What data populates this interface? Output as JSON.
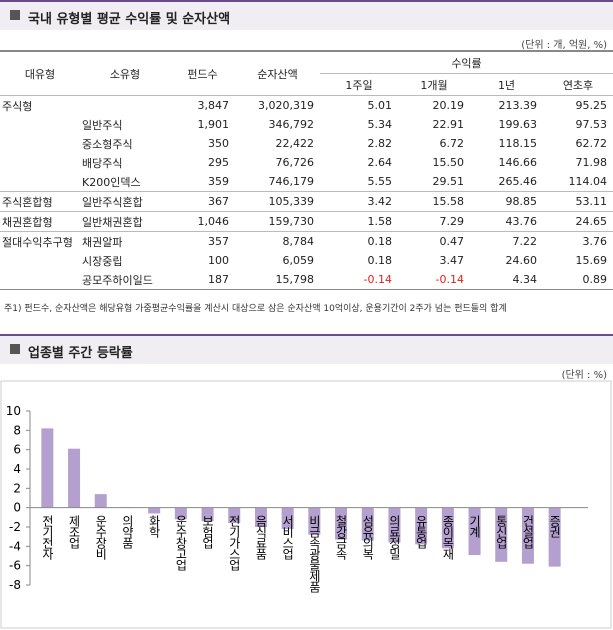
{
  "header": {
    "title": "국내 유형별 평균 수익률 및 순자산액",
    "unit": "(단위 : 개, 억원, %)"
  },
  "table": {
    "columns": [
      "대유형",
      "소유형",
      "펀드수",
      "순자산액"
    ],
    "group_header": "수익률",
    "sub_columns": [
      "1주일",
      "1개월",
      "1년",
      "연초후"
    ],
    "rows": [
      [
        "주식형",
        null,
        "3,847",
        "3,020,319",
        "5.01",
        "20.19",
        "213.39",
        "95.25"
      ],
      [
        null,
        "일반주식",
        "1,901",
        "346,792",
        "5.34",
        "22.91",
        "199.63",
        "97.53"
      ],
      [
        null,
        "중소형주식",
        "350",
        "22,422",
        "2.82",
        "6.72",
        "118.15",
        "62.72"
      ],
      [
        null,
        "배당주식",
        "295",
        "76,726",
        "2.64",
        "15.50",
        "146.66",
        "71.98"
      ],
      [
        null,
        "K200인덱스",
        "359",
        "746,179",
        "5.55",
        "29.51",
        "265.46",
        "114.04"
      ],
      [
        "주식혼합형",
        "일반주식혼합",
        "367",
        "105,339",
        "3.42",
        "15.58",
        "98.85",
        "53.11"
      ],
      [
        "채권혼합형",
        "일반채권혼합",
        "1,046",
        "159,730",
        "1.58",
        "7.29",
        "43.76",
        "24.65"
      ],
      [
        "절대수익추구형",
        "채권알파",
        "357",
        "8,784",
        "0.18",
        "0.47",
        "7.22",
        "3.76"
      ],
      [
        null,
        "시장중립",
        "100",
        "6,059",
        "0.18",
        "3.47",
        "24.60",
        "15.69"
      ],
      [
        null,
        "공모주하이일드",
        "187",
        "15,798",
        "-0.14",
        "-0.14",
        "4.34",
        "0.89"
      ]
    ],
    "footnote": "주1) 펀드수, 순자산액은 해당유형 가중평균수익률을 계산시 대상으로 삼은 순자산액 10억이상, 운용기간이 2주가 넘는 펀드들의 합계"
  },
  "chart_data": {
    "type": "bar",
    "title": "업종별 주간 등락률",
    "unit": "(단위 : %)",
    "categories": [
      "전기전자",
      "제조업",
      "운수장비",
      "의약품",
      "화학",
      "운수창고업",
      "보험업",
      "전기가스업",
      "음식료품",
      "서비스업",
      "비금속광물제품",
      "철강금속",
      "섬유의복",
      "의료정밀",
      "유통업",
      "종이목재",
      "기계",
      "통신업",
      "건설업",
      "증권"
    ],
    "values": [
      8.2,
      6.1,
      1.4,
      0.05,
      -0.6,
      -1.2,
      -1.4,
      -1.6,
      -2.0,
      -2.2,
      -2.8,
      -3.3,
      -3.4,
      -3.6,
      -3.8,
      -4.2,
      -4.9,
      -5.6,
      -5.8,
      -6.1
    ],
    "color": "#b3a0cf",
    "ylim": [
      -8,
      10
    ],
    "yticks": [
      -8,
      -6,
      -4,
      -2,
      0,
      2,
      4,
      6,
      8,
      10
    ],
    "grid": false
  }
}
